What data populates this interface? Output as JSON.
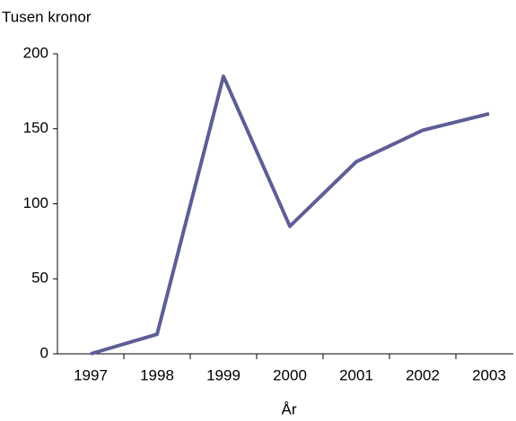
{
  "chart_data": {
    "type": "line",
    "y_label": "Tusen kronor",
    "x_label": "År",
    "categories": [
      "1997",
      "1998",
      "1999",
      "2000",
      "2001",
      "2002",
      "2003"
    ],
    "series": [
      {
        "name": "Tusen kronor",
        "color": "#5e5e96",
        "values": [
          0,
          13,
          185,
          85,
          128,
          149,
          160
        ]
      }
    ],
    "ylim": [
      0,
      200
    ],
    "yticks": [
      0,
      50,
      100,
      150,
      200
    ],
    "grid": false
  }
}
